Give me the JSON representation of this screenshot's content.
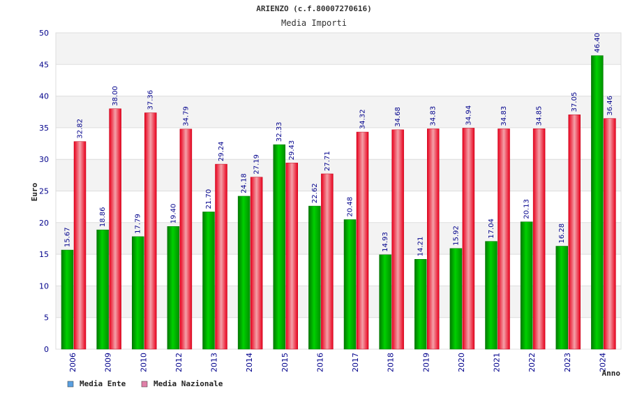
{
  "chart_data": {
    "type": "bar",
    "title": "ARIENZO (c.f.80007270616)",
    "subtitle": "Media Importi",
    "xlabel": "Anno",
    "ylabel": "Euro",
    "ylim": [
      0,
      50
    ],
    "yticks": [
      "0",
      "5",
      "10",
      "15",
      "20",
      "25",
      "30",
      "35",
      "40",
      "45",
      "50"
    ],
    "grid": true,
    "legend_position": "bottom-left",
    "categories": [
      "2006",
      "2009",
      "2010",
      "2012",
      "2013",
      "2014",
      "2015",
      "2016",
      "2017",
      "2018",
      "2019",
      "2020",
      "2021",
      "2022",
      "2023",
      "2024"
    ],
    "series": [
      {
        "name": "Media Ente",
        "color": "#00b000",
        "legend_color": "#5aa0e0",
        "values": [
          15.67,
          18.86,
          17.79,
          19.4,
          21.7,
          24.18,
          32.33,
          22.62,
          20.48,
          14.93,
          14.21,
          15.92,
          17.04,
          20.13,
          16.28,
          46.4
        ],
        "labels": [
          "15.67",
          "18.86",
          "17.79",
          "19.40",
          "21.70",
          "24.18",
          "32.33",
          "22.62",
          "20.48",
          "14.93",
          "14.21",
          "15.92",
          "17.04",
          "20.13",
          "16.28",
          "46.40"
        ]
      },
      {
        "name": "Media Nazionale",
        "color": "#e8001c",
        "legend_color": "#e080a8",
        "values": [
          32.82,
          38.0,
          37.36,
          34.79,
          29.24,
          27.19,
          29.43,
          27.71,
          34.32,
          34.68,
          34.83,
          34.94,
          34.83,
          34.85,
          37.05,
          36.46
        ],
        "labels": [
          "32.82",
          "38.00",
          "37.36",
          "34.79",
          "29.24",
          "27.19",
          "29.43",
          "27.71",
          "34.32",
          "34.68",
          "34.83",
          "34.94",
          "34.83",
          "34.85",
          "37.05",
          "36.46"
        ]
      }
    ]
  }
}
